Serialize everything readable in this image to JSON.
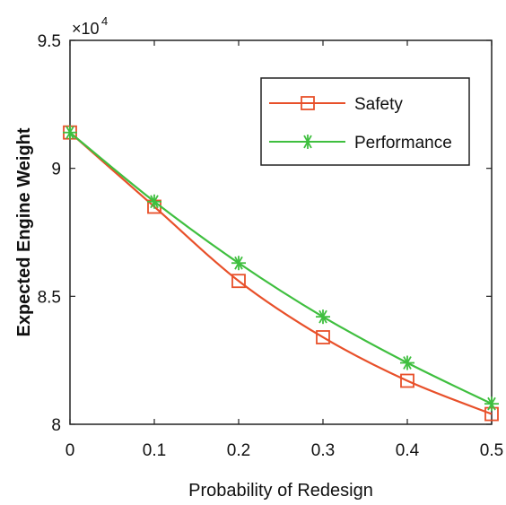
{
  "chart_data": {
    "type": "line",
    "title": "",
    "xlabel": "Probability of Redesign",
    "ylabel": "Expected Engine Weight",
    "y_multiplier": {
      "base": "×10",
      "exponent": "4"
    },
    "x": [
      0,
      0.1,
      0.2,
      0.3,
      0.4,
      0.5
    ],
    "xlim": [
      0,
      0.5
    ],
    "ylim": [
      8.0,
      9.5
    ],
    "x_ticks": [
      "0",
      "0.1",
      "0.2",
      "0.3",
      "0.4",
      "0.5"
    ],
    "y_ticks": [
      "8",
      "8.5",
      "9",
      "9.5"
    ],
    "grid": false,
    "legend_position": "top-right",
    "series": [
      {
        "name": "Safety",
        "color": "#e8502a",
        "marker": "square",
        "values": [
          9.14,
          8.85,
          8.56,
          8.34,
          8.17,
          8.04
        ]
      },
      {
        "name": "Performance",
        "color": "#3fbf3f",
        "marker": "asterisk",
        "values": [
          9.14,
          8.87,
          8.63,
          8.42,
          8.24,
          8.08
        ]
      }
    ]
  }
}
